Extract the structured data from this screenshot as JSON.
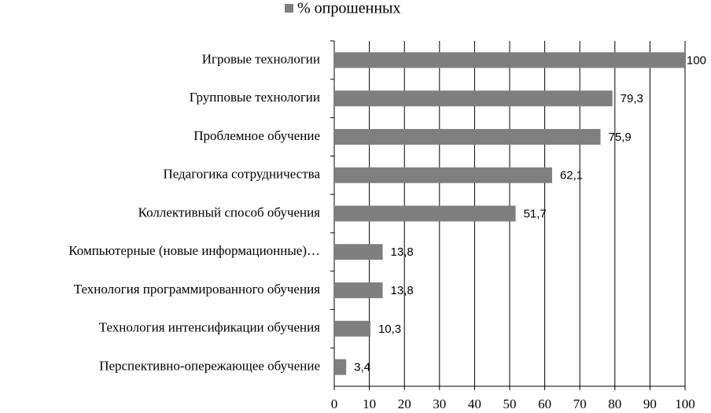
{
  "chart_data": {
    "type": "bar",
    "orientation": "horizontal",
    "legend": "top",
    "series": [
      {
        "name": "% опрошенных",
        "color": "#7f7f7f",
        "values": [
          100,
          79.3,
          75.9,
          62.1,
          51.7,
          13.8,
          13.8,
          10.3,
          3.4
        ],
        "value_labels": [
          "100",
          "79,3",
          "75,9",
          "62,1",
          "51,7",
          "13,8",
          "13,8",
          "10,3",
          "3,4"
        ]
      }
    ],
    "categories": [
      "Игровые технологии",
      "Групповые технологии",
      "Проблемное обучение",
      "Педагогика сотрудничества",
      "Коллективный способ обучения",
      "Компьютерные (новые информационные)…",
      "Технология программированного обучения",
      "Технология интенсификации обучения",
      "Перспективно-опережающее обучение"
    ],
    "xlim": [
      0,
      100
    ],
    "xticks": [
      0,
      10,
      20,
      30,
      40,
      50,
      60,
      70,
      80,
      90,
      100
    ],
    "grid": true
  }
}
